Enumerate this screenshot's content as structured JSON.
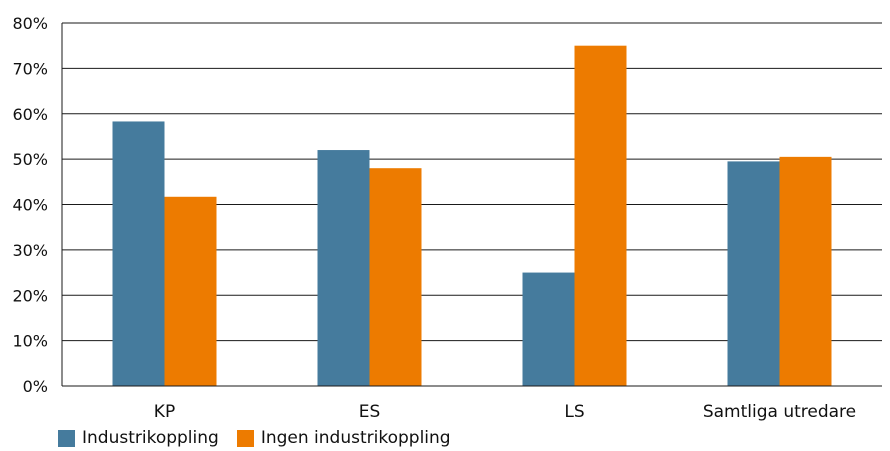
{
  "chart_data": {
    "type": "bar",
    "categories": [
      "KP",
      "ES",
      "LS",
      "Samtliga utredare"
    ],
    "series": [
      {
        "name": "Industrikoppling",
        "values": [
          58.3,
          52.0,
          25.0,
          49.5
        ],
        "color": "#457b9d"
      },
      {
        "name": "Ingen industrikoppling",
        "values": [
          41.7,
          48.0,
          75.0,
          50.5
        ],
        "color": "#ed7b00"
      }
    ],
    "ylim": [
      0,
      80
    ],
    "y_ticks": [
      "0%",
      "10%",
      "20%",
      "30%",
      "40%",
      "50%",
      "60%",
      "70%",
      "80%"
    ],
    "grid": true,
    "legend_position": "bottom-left",
    "title": "",
    "xlabel": "",
    "ylabel": ""
  }
}
